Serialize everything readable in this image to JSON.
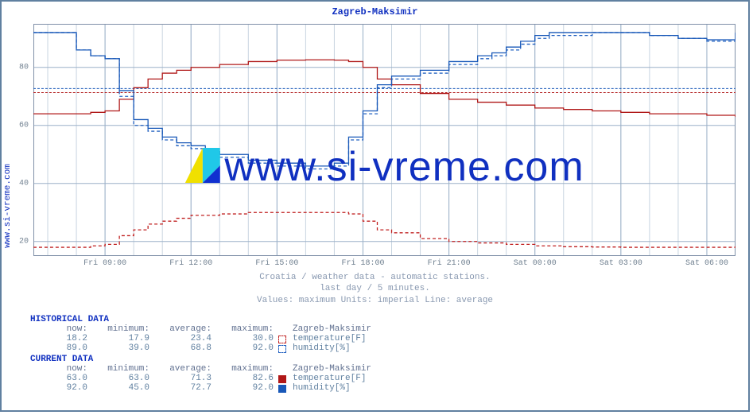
{
  "title": "Zagreb-Maksimir",
  "side_label": "www.si-vreme.com",
  "watermark_text": "www.si-vreme.com",
  "caption": {
    "line1": "Croatia / weather data - automatic stations.",
    "line2": "last day / 5 minutes.",
    "line3": "Values: maximum  Units: imperial  Line: average"
  },
  "chart": {
    "type": "line",
    "ylim": [
      15,
      95
    ],
    "yticks": [
      20,
      40,
      60,
      80
    ],
    "x_labels": [
      "Fri 09:00",
      "Fri 12:00",
      "Fri 15:00",
      "Fri 18:00",
      "Fri 21:00",
      "Sat 00:00",
      "Sat 03:00",
      "Sat 06:00"
    ],
    "x_range": [
      6.5,
      31
    ],
    "background_color": "#ffffff",
    "grid_color": "#c8d4e0",
    "grid_major_color": "#9bb0c8",
    "colors": {
      "temperature": "#c02020",
      "humidity": "#2060c0",
      "temperature_dashed": "#c02020",
      "humidity_dashed": "#2060c0",
      "avg_band": "#d89090"
    },
    "series": {
      "temp_hist": {
        "dash": true,
        "color": "#c02020",
        "points": [
          [
            6.5,
            18
          ],
          [
            8,
            18
          ],
          [
            8.5,
            18.5
          ],
          [
            9,
            19
          ],
          [
            9.5,
            22
          ],
          [
            10,
            24
          ],
          [
            10.5,
            26
          ],
          [
            11,
            27
          ],
          [
            11.5,
            28
          ],
          [
            12,
            29
          ],
          [
            13,
            29.5
          ],
          [
            14,
            30
          ],
          [
            15,
            30
          ],
          [
            16,
            30
          ],
          [
            17,
            30
          ],
          [
            17.5,
            29.5
          ],
          [
            18,
            27
          ],
          [
            18.5,
            24
          ],
          [
            19,
            23
          ],
          [
            20,
            21
          ],
          [
            21,
            20
          ],
          [
            22,
            19.5
          ],
          [
            23,
            19
          ],
          [
            24,
            18.5
          ],
          [
            25,
            18.2
          ],
          [
            26,
            18.1
          ],
          [
            27,
            18
          ],
          [
            28,
            18
          ],
          [
            29,
            18
          ],
          [
            30,
            18
          ],
          [
            31,
            18.2
          ]
        ]
      },
      "hum_hist": {
        "dash": true,
        "color": "#2060c0",
        "points": [
          [
            6.5,
            92
          ],
          [
            7.5,
            92
          ],
          [
            8,
            86
          ],
          [
            8.5,
            84
          ],
          [
            9,
            83
          ],
          [
            9.5,
            70
          ],
          [
            10,
            60
          ],
          [
            10.5,
            58
          ],
          [
            11,
            55
          ],
          [
            11.5,
            53
          ],
          [
            12,
            52
          ],
          [
            12.5,
            50
          ],
          [
            13,
            49
          ],
          [
            14,
            47
          ],
          [
            15,
            46
          ],
          [
            15.5,
            46
          ],
          [
            16,
            45
          ],
          [
            16.5,
            45
          ],
          [
            17,
            46
          ],
          [
            17.5,
            55
          ],
          [
            18,
            64
          ],
          [
            18.5,
            73
          ],
          [
            19,
            76
          ],
          [
            20,
            78
          ],
          [
            21,
            81
          ],
          [
            22,
            83
          ],
          [
            22.5,
            84
          ],
          [
            23,
            86
          ],
          [
            23.5,
            88
          ],
          [
            24,
            90
          ],
          [
            24.5,
            91
          ],
          [
            25,
            91
          ],
          [
            26,
            92
          ],
          [
            27,
            92
          ],
          [
            28,
            91
          ],
          [
            29,
            90
          ],
          [
            30,
            89
          ],
          [
            31,
            89
          ]
        ]
      },
      "temp_curr": {
        "dash": false,
        "color": "#b01818",
        "points": [
          [
            6.5,
            64
          ],
          [
            8,
            64
          ],
          [
            8.5,
            64.5
          ],
          [
            9,
            65
          ],
          [
            9.5,
            69
          ],
          [
            10,
            73
          ],
          [
            10.5,
            76
          ],
          [
            11,
            78
          ],
          [
            11.5,
            79
          ],
          [
            12,
            80
          ],
          [
            13,
            81
          ],
          [
            14,
            82
          ],
          [
            15,
            82.5
          ],
          [
            16,
            82.6
          ],
          [
            17,
            82.5
          ],
          [
            17.5,
            82
          ],
          [
            18,
            80
          ],
          [
            18.5,
            76
          ],
          [
            19,
            74
          ],
          [
            20,
            71
          ],
          [
            21,
            69
          ],
          [
            22,
            68
          ],
          [
            23,
            67
          ],
          [
            24,
            66
          ],
          [
            25,
            65.5
          ],
          [
            26,
            65
          ],
          [
            27,
            64.5
          ],
          [
            28,
            64
          ],
          [
            29,
            64
          ],
          [
            30,
            63.5
          ],
          [
            31,
            63
          ]
        ]
      },
      "hum_curr": {
        "dash": false,
        "color": "#1858b8",
        "points": [
          [
            6.5,
            92
          ],
          [
            7.5,
            92
          ],
          [
            8,
            86
          ],
          [
            8.5,
            84
          ],
          [
            9,
            83
          ],
          [
            9.5,
            72
          ],
          [
            10,
            62
          ],
          [
            10.5,
            59
          ],
          [
            11,
            56
          ],
          [
            11.5,
            54
          ],
          [
            12,
            53
          ],
          [
            12.5,
            51
          ],
          [
            13,
            50
          ],
          [
            14,
            48
          ],
          [
            15,
            47
          ],
          [
            15.5,
            47
          ],
          [
            16,
            46
          ],
          [
            16.5,
            46
          ],
          [
            17,
            47
          ],
          [
            17.5,
            56
          ],
          [
            18,
            65
          ],
          [
            18.5,
            74
          ],
          [
            19,
            77
          ],
          [
            20,
            79
          ],
          [
            21,
            82
          ],
          [
            22,
            84
          ],
          [
            22.5,
            85
          ],
          [
            23,
            87
          ],
          [
            23.5,
            89
          ],
          [
            24,
            91
          ],
          [
            24.5,
            92
          ],
          [
            25,
            92
          ],
          [
            26,
            92
          ],
          [
            27,
            92
          ],
          [
            28,
            91
          ],
          [
            29,
            90
          ],
          [
            30,
            89.5
          ],
          [
            31,
            92
          ]
        ]
      },
      "temp_avg_line": {
        "y": 71.3,
        "color": "#b01818",
        "dash_pattern": "3,2"
      },
      "hum_avg_line": {
        "y": 72.7,
        "color": "#1858b8",
        "dash_pattern": "3,2"
      }
    }
  },
  "historical": {
    "title": "HISTORICAL DATA",
    "columns": [
      "now:",
      "minimum:",
      "average:",
      "maximum:",
      "Zagreb-Maksimir"
    ],
    "rows": [
      {
        "now": "18.2",
        "min": "17.9",
        "avg": "23.4",
        "max": "30.0",
        "label": "temperature[F]",
        "swatch": "#c02020",
        "swatch_dash": true
      },
      {
        "now": "89.0",
        "min": "39.0",
        "avg": "68.8",
        "max": "92.0",
        "label": "humidity[%]",
        "swatch": "#2060c0",
        "swatch_dash": true
      }
    ]
  },
  "current": {
    "title": "CURRENT DATA",
    "columns": [
      "now:",
      "minimum:",
      "average:",
      "maximum:",
      "Zagreb-Maksimir"
    ],
    "rows": [
      {
        "now": "63.0",
        "min": "63.0",
        "avg": "71.3",
        "max": "82.6",
        "label": "temperature[F]",
        "swatch": "#b01818",
        "swatch_dash": false
      },
      {
        "now": "92.0",
        "min": "45.0",
        "avg": "72.7",
        "max": "92.0",
        "label": "humidity[%]",
        "swatch": "#1858b8",
        "swatch_dash": false
      }
    ]
  }
}
